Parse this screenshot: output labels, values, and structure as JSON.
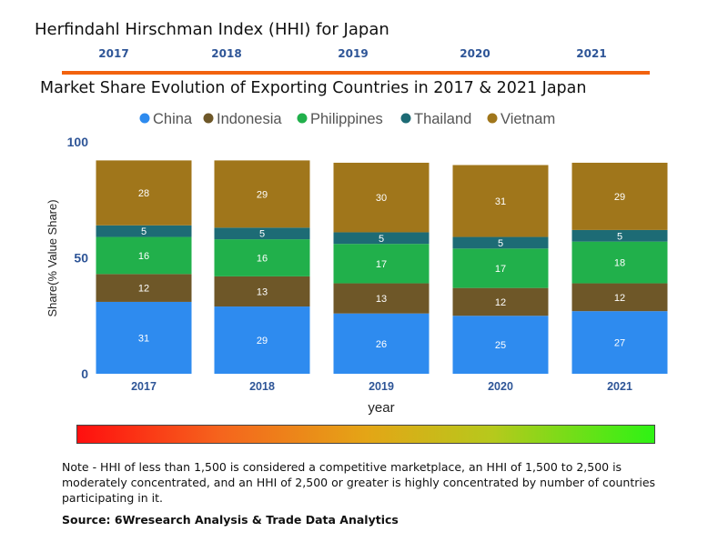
{
  "header": {
    "title": "Herfindahl Hirschman Index (HHI) for Japan",
    "years": [
      "2017",
      "2018",
      "2019",
      "2020",
      "2021"
    ]
  },
  "chart_data": {
    "type": "bar",
    "stacked": true,
    "title": "Market Share Evolution of Exporting Countries in 2017 & 2021 Japan",
    "xlabel": "year",
    "ylabel": "Share(% Value Share)",
    "ylim": [
      0,
      100
    ],
    "yticks": [
      "0",
      "50",
      "100"
    ],
    "legend_position": "top",
    "categories": [
      "2017",
      "2018",
      "2019",
      "2020",
      "2021"
    ],
    "series": [
      {
        "name": "China",
        "color": "#2e8bef",
        "values": [
          31,
          29,
          26,
          25,
          27
        ]
      },
      {
        "name": "Indonesia",
        "color": "#6e5728",
        "values": [
          12,
          13,
          13,
          12,
          12
        ]
      },
      {
        "name": "Philippines",
        "color": "#21b04b",
        "values": [
          16,
          16,
          17,
          17,
          18
        ]
      },
      {
        "name": "Thailand",
        "color": "#1d6b75",
        "values": [
          5,
          5,
          5,
          5,
          5
        ]
      },
      {
        "name": "Vietnam",
        "color": "#a0761b",
        "values": [
          28,
          29,
          30,
          31,
          29
        ]
      }
    ]
  },
  "scale": {
    "colors": [
      "#ff0f0f",
      "#e4a516",
      "#2ef314"
    ]
  },
  "footer": {
    "note": "Note - HHI of less than 1,500 is considered a competitive marketplace, an HHI of 1,500 to 2,500 is moderately concentrated, and an HHI of 2,500 or greater is highly concentrated by number of countries participating in it.",
    "source": "Source: 6Wresearch Analysis & Trade Data Analytics"
  }
}
